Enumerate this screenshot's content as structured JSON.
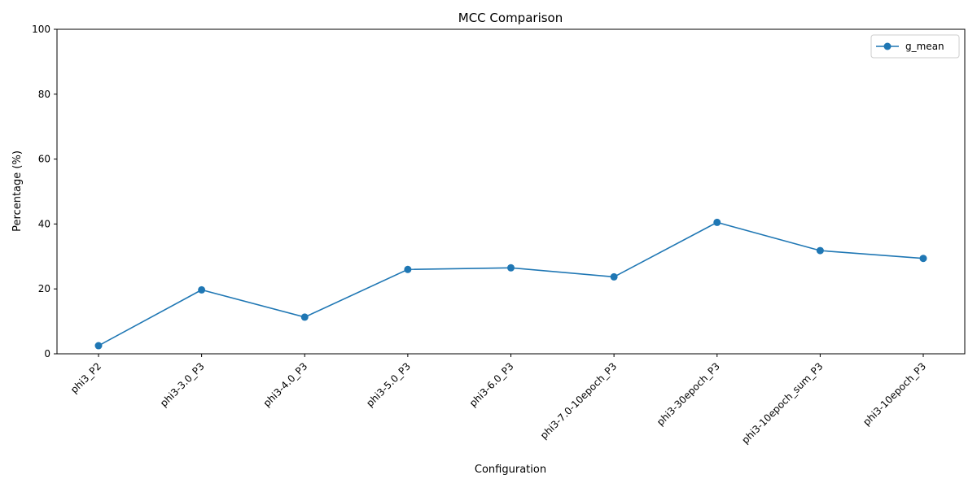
{
  "chart_data": {
    "type": "line",
    "title": "MCC Comparison",
    "xlabel": "Configuration",
    "ylabel": "Percentage (%)",
    "categories": [
      "phi3_P2",
      "phi3-3.0_P3",
      "phi3-4.0_P3",
      "phi3-5.0_P3",
      "phi3-6.0_P3",
      "phi3-7.0-10epoch_P3",
      "phi3-30epoch_P3",
      "phi3-10epoch_sum_P3",
      "phi3-10epoch_P3"
    ],
    "series": [
      {
        "name": "g_mean",
        "values": [
          2.5,
          19.7,
          11.3,
          26.0,
          26.5,
          23.7,
          40.5,
          31.8,
          29.4
        ],
        "color": "#1f77b4",
        "marker": "circle"
      }
    ],
    "ylim": [
      0,
      100
    ],
    "yticks": [
      0,
      20,
      40,
      60,
      80,
      100
    ],
    "grid": false,
    "legend_position": "top-right"
  }
}
